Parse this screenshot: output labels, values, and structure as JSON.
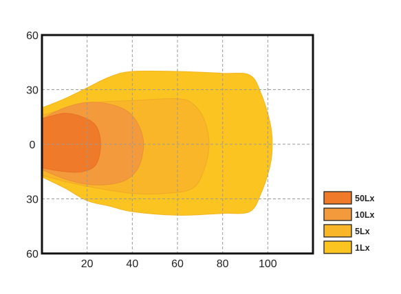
{
  "chart_data": {
    "type": "area",
    "title": "",
    "xlabel": "",
    "ylabel": "",
    "x_ticks": [
      20,
      40,
      60,
      80,
      100
    ],
    "y_ticks": [
      {
        "value": 60,
        "label": "60"
      },
      {
        "value": 30,
        "label": "30"
      },
      {
        "value": 0,
        "label": "0"
      },
      {
        "value": -30,
        "label": "30"
      },
      {
        "value": -60,
        "label": "60"
      }
    ],
    "xlim": [
      0,
      120
    ],
    "ylim": [
      -60,
      60
    ],
    "grid": true,
    "legend_position": "right",
    "series": [
      {
        "name": "1Lx",
        "color": "#fbc421",
        "stroke": "#f4b51d",
        "max_distance": 102,
        "max_half_width": 40,
        "outline": [
          [
            0,
            20
          ],
          [
            10,
            25
          ],
          [
            20,
            31
          ],
          [
            30,
            37
          ],
          [
            40,
            40
          ],
          [
            60,
            40
          ],
          [
            80,
            39
          ],
          [
            92,
            38
          ],
          [
            97,
            28
          ],
          [
            101,
            12
          ],
          [
            102,
            0
          ],
          [
            101,
            -12
          ],
          [
            97,
            -27
          ],
          [
            92,
            -37
          ],
          [
            80,
            -38
          ],
          [
            60,
            -39
          ],
          [
            40,
            -37
          ],
          [
            30,
            -34
          ],
          [
            20,
            -31
          ],
          [
            10,
            -24
          ],
          [
            0,
            -18
          ]
        ]
      },
      {
        "name": "5Lx",
        "color": "#f8b628",
        "stroke": "#f0a82a",
        "max_distance": 74,
        "max_half_width": 27,
        "outline": [
          [
            0,
            16
          ],
          [
            12,
            20
          ],
          [
            24,
            23
          ],
          [
            40,
            24
          ],
          [
            60,
            25
          ],
          [
            67,
            22
          ],
          [
            72,
            13
          ],
          [
            74,
            0
          ],
          [
            72,
            -13
          ],
          [
            67,
            -24
          ],
          [
            55,
            -27
          ],
          [
            40,
            -27
          ],
          [
            24,
            -24
          ],
          [
            12,
            -21
          ],
          [
            0,
            -17
          ]
        ]
      },
      {
        "name": "10Lx",
        "color": "#f39b3c",
        "stroke": "#ec9036",
        "max_distance": 45,
        "max_half_width": 23,
        "outline": [
          [
            0,
            14
          ],
          [
            10,
            20
          ],
          [
            20,
            23
          ],
          [
            30,
            22
          ],
          [
            38,
            18
          ],
          [
            43,
            10
          ],
          [
            45,
            0
          ],
          [
            43,
            -12
          ],
          [
            38,
            -19
          ],
          [
            30,
            -22
          ],
          [
            20,
            -22
          ],
          [
            10,
            -19
          ],
          [
            0,
            -14
          ]
        ]
      },
      {
        "name": "50Lx",
        "color": "#ee7a2a",
        "stroke": "#e87024",
        "max_distance": 26,
        "max_half_width": 17,
        "outline": [
          [
            0,
            14
          ],
          [
            10,
            17
          ],
          [
            18,
            15
          ],
          [
            24,
            10
          ],
          [
            26,
            0
          ],
          [
            24,
            -11
          ],
          [
            18,
            -15
          ],
          [
            10,
            -15
          ],
          [
            0,
            -13
          ]
        ]
      }
    ],
    "legend": [
      {
        "label": "50Lx",
        "color": "#ee7a2a"
      },
      {
        "label": "10Lx",
        "color": "#f39b3c"
      },
      {
        "label": "5Lx",
        "color": "#f8b628"
      },
      {
        "label": "1Lx",
        "color": "#fbc421"
      }
    ]
  }
}
